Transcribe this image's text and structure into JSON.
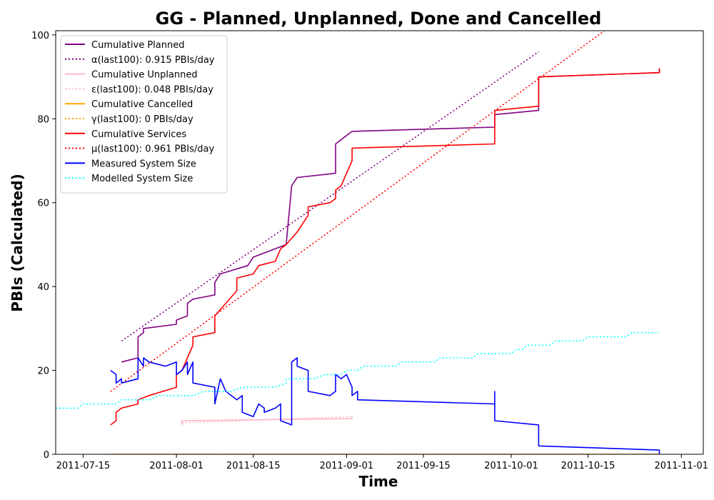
{
  "chart_data": {
    "type": "line",
    "title": "GG - Planned, Unplanned, Done  and Cancelled",
    "xlabel": "Time",
    "ylabel": "PBIs (Calculated)",
    "xlim": [
      "2011-07-10",
      "2011-11-05"
    ],
    "ylim": [
      0,
      101
    ],
    "x_ticks": [
      "2011-07-15",
      "2011-08-01",
      "2011-08-15",
      "2011-09-01",
      "2011-09-15",
      "2011-10-01",
      "2011-10-15",
      "2011-11-01"
    ],
    "y_ticks": [
      0,
      20,
      40,
      60,
      80,
      100
    ],
    "grid": false,
    "legend_position": "top-left",
    "series": [
      {
        "name": "Cumulative Planned",
        "color": "#800080",
        "style": "solid",
        "points": [
          [
            "2011-07-22",
            22
          ],
          [
            "2011-07-25",
            23
          ],
          [
            "2011-07-25",
            28
          ],
          [
            "2011-07-26",
            29
          ],
          [
            "2011-07-26",
            30
          ],
          [
            "2011-08-01",
            31
          ],
          [
            "2011-08-01",
            32
          ],
          [
            "2011-08-03",
            33
          ],
          [
            "2011-08-03",
            36
          ],
          [
            "2011-08-04",
            37
          ],
          [
            "2011-08-08",
            38
          ],
          [
            "2011-08-08",
            41
          ],
          [
            "2011-08-09",
            43
          ],
          [
            "2011-08-14",
            45
          ],
          [
            "2011-08-15",
            47
          ],
          [
            "2011-08-19",
            49
          ],
          [
            "2011-08-21",
            50
          ],
          [
            "2011-08-22",
            64
          ],
          [
            "2011-08-23",
            66
          ],
          [
            "2011-08-30",
            67
          ],
          [
            "2011-08-30",
            74
          ],
          [
            "2011-08-31",
            75
          ],
          [
            "2011-09-01",
            76
          ],
          [
            "2011-09-02",
            77
          ],
          [
            "2011-09-28",
            78
          ],
          [
            "2011-09-28",
            81
          ],
          [
            "2011-10-06",
            82
          ],
          [
            "2011-10-06",
            90
          ],
          [
            "2011-10-28",
            91
          ],
          [
            "2011-10-28",
            92
          ]
        ]
      },
      {
        "name": "α(last100): 0.915 PBIs/day",
        "color": "#800080",
        "style": "dotted",
        "points": [
          [
            "2011-07-22",
            27
          ],
          [
            "2011-10-06",
            96
          ]
        ]
      },
      {
        "name": "Cumulative Unplanned",
        "color": "#ffb6c1",
        "style": "solid",
        "points": [
          [
            "2011-08-02",
            7
          ],
          [
            "2011-08-02",
            8
          ],
          [
            "2011-09-02",
            8.5
          ],
          [
            "2011-09-02",
            9
          ]
        ]
      },
      {
        "name": "ε(last100): 0.048 PBIs/day",
        "color": "#ffb6c1",
        "style": "dotted",
        "points": [
          [
            "2011-08-02",
            7.5
          ],
          [
            "2011-09-02",
            9
          ]
        ]
      },
      {
        "name": "Cumulative Cancelled",
        "color": "#ffa500",
        "style": "solid",
        "points": [
          [
            "2011-07-20",
            0
          ],
          [
            "2011-10-28",
            0
          ]
        ]
      },
      {
        "name": "γ(last100): 0 PBIs/day",
        "color": "#ffa500",
        "style": "dotted",
        "points": [
          [
            "2011-07-20",
            0
          ],
          [
            "2011-10-28",
            0
          ]
        ]
      },
      {
        "name": "Cumulative Services",
        "color": "#ff0000",
        "style": "solid",
        "points": [
          [
            "2011-07-20",
            7
          ],
          [
            "2011-07-21",
            8
          ],
          [
            "2011-07-21",
            10
          ],
          [
            "2011-07-22",
            11
          ],
          [
            "2011-07-25",
            12
          ],
          [
            "2011-07-25",
            13
          ],
          [
            "2011-07-27",
            14
          ],
          [
            "2011-08-01",
            16
          ],
          [
            "2011-08-01",
            19
          ],
          [
            "2011-08-02",
            20
          ],
          [
            "2011-08-03",
            23
          ],
          [
            "2011-08-04",
            26
          ],
          [
            "2011-08-04",
            28
          ],
          [
            "2011-08-08",
            29
          ],
          [
            "2011-08-08",
            33
          ],
          [
            "2011-08-10",
            36
          ],
          [
            "2011-08-12",
            39
          ],
          [
            "2011-08-12",
            42
          ],
          [
            "2011-08-15",
            43
          ],
          [
            "2011-08-16",
            45
          ],
          [
            "2011-08-19",
            46
          ],
          [
            "2011-08-20",
            49
          ],
          [
            "2011-08-21",
            50
          ],
          [
            "2011-08-23",
            53
          ],
          [
            "2011-08-24",
            55
          ],
          [
            "2011-08-25",
            57
          ],
          [
            "2011-08-25",
            59
          ],
          [
            "2011-08-29",
            60
          ],
          [
            "2011-08-30",
            61
          ],
          [
            "2011-08-30",
            63
          ],
          [
            "2011-08-31",
            64
          ],
          [
            "2011-09-01",
            67
          ],
          [
            "2011-09-02",
            70
          ],
          [
            "2011-09-02",
            73
          ],
          [
            "2011-09-28",
            74
          ],
          [
            "2011-09-28",
            82
          ],
          [
            "2011-10-06",
            83
          ],
          [
            "2011-10-06",
            90
          ],
          [
            "2011-10-28",
            91
          ],
          [
            "2011-10-28",
            92
          ]
        ]
      },
      {
        "name": "μ(last100): 0.961 PBIs/day",
        "color": "#ff0000",
        "style": "dotted",
        "points": [
          [
            "2011-07-20",
            15
          ],
          [
            "2011-10-18",
            101
          ]
        ]
      },
      {
        "name": "Measured System Size",
        "color": "#0000ff",
        "style": "solid",
        "points": [
          [
            "2011-07-20",
            20
          ],
          [
            "2011-07-21",
            19
          ],
          [
            "2011-07-21",
            17
          ],
          [
            "2011-07-22",
            18
          ],
          [
            "2011-07-22",
            17
          ],
          [
            "2011-07-25",
            18
          ],
          [
            "2011-07-25",
            23
          ],
          [
            "2011-07-26",
            21
          ],
          [
            "2011-07-26",
            23
          ],
          [
            "2011-07-27",
            22
          ],
          [
            "2011-07-30",
            21
          ],
          [
            "2011-08-01",
            22
          ],
          [
            "2011-08-01",
            19
          ],
          [
            "2011-08-02",
            20
          ],
          [
            "2011-08-03",
            22
          ],
          [
            "2011-08-03",
            19
          ],
          [
            "2011-08-04",
            22
          ],
          [
            "2011-08-04",
            17
          ],
          [
            "2011-08-08",
            16
          ],
          [
            "2011-08-08",
            12
          ],
          [
            "2011-08-09",
            18
          ],
          [
            "2011-08-10",
            15
          ],
          [
            "2011-08-12",
            13
          ],
          [
            "2011-08-13",
            14
          ],
          [
            "2011-08-13",
            10
          ],
          [
            "2011-08-15",
            9
          ],
          [
            "2011-08-16",
            12
          ],
          [
            "2011-08-17",
            11
          ],
          [
            "2011-08-17",
            10
          ],
          [
            "2011-08-19",
            11
          ],
          [
            "2011-08-20",
            12
          ],
          [
            "2011-08-20",
            8
          ],
          [
            "2011-08-22",
            7
          ],
          [
            "2011-08-22",
            22
          ],
          [
            "2011-08-23",
            23
          ],
          [
            "2011-08-23",
            21
          ],
          [
            "2011-08-25",
            20
          ],
          [
            "2011-08-25",
            15
          ],
          [
            "2011-08-29",
            14
          ],
          [
            "2011-08-30",
            15
          ],
          [
            "2011-08-30",
            19
          ],
          [
            "2011-08-31",
            18
          ],
          [
            "2011-09-01",
            19
          ],
          [
            "2011-09-02",
            16
          ],
          [
            "2011-09-02",
            14
          ],
          [
            "2011-09-03",
            15
          ],
          [
            "2011-09-03",
            13
          ],
          [
            "2011-09-28",
            12
          ],
          [
            "2011-09-28",
            15
          ],
          [
            "2011-09-28",
            8
          ],
          [
            "2011-10-06",
            7
          ],
          [
            "2011-10-06",
            2
          ],
          [
            "2011-10-28",
            1
          ],
          [
            "2011-10-28",
            0
          ]
        ]
      },
      {
        "name": "Modelled System Size",
        "color": "#00ffff",
        "style": "dotted",
        "points": [
          [
            "2011-07-10",
            11
          ],
          [
            "2011-07-14",
            11
          ],
          [
            "2011-07-15",
            12
          ],
          [
            "2011-07-21",
            12
          ],
          [
            "2011-07-22",
            13
          ],
          [
            "2011-07-27",
            13
          ],
          [
            "2011-07-29",
            14
          ],
          [
            "2011-08-04",
            14
          ],
          [
            "2011-08-06",
            15
          ],
          [
            "2011-08-11",
            15
          ],
          [
            "2011-08-13",
            16
          ],
          [
            "2011-08-19",
            16
          ],
          [
            "2011-08-21",
            17
          ],
          [
            "2011-08-21",
            18
          ],
          [
            "2011-08-26",
            18
          ],
          [
            "2011-08-28",
            19
          ],
          [
            "2011-08-31",
            19
          ],
          [
            "2011-09-01",
            20
          ],
          [
            "2011-09-03",
            20
          ],
          [
            "2011-09-04",
            21
          ],
          [
            "2011-09-10",
            21
          ],
          [
            "2011-09-11",
            22
          ],
          [
            "2011-09-17",
            22
          ],
          [
            "2011-09-18",
            23
          ],
          [
            "2011-09-24",
            23
          ],
          [
            "2011-09-25",
            24
          ],
          [
            "2011-10-01",
            24
          ],
          [
            "2011-10-02",
            25
          ],
          [
            "2011-10-03",
            25
          ],
          [
            "2011-10-04",
            26
          ],
          [
            "2011-10-08",
            26
          ],
          [
            "2011-10-09",
            27
          ],
          [
            "2011-10-14",
            27
          ],
          [
            "2011-10-15",
            28
          ],
          [
            "2011-10-22",
            28
          ],
          [
            "2011-10-23",
            29
          ],
          [
            "2011-10-28",
            29
          ]
        ]
      }
    ]
  }
}
